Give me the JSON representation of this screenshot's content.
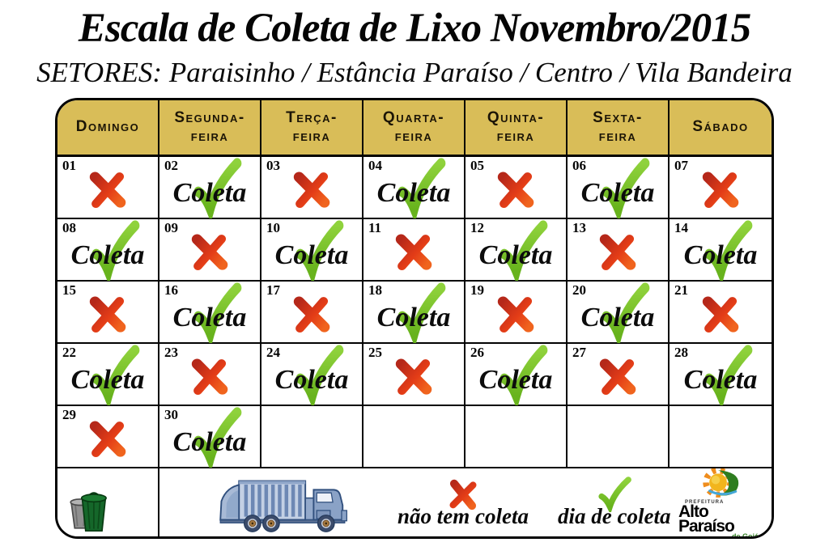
{
  "header": {
    "title": "Escala de Coleta de Lixo Novembro/2015",
    "subtitle": "SETORES: Paraisinho / Estância Paraíso / Centro / Vila Bandeira"
  },
  "colors": {
    "header_gold": "#d9bd58",
    "table_border": "#030303",
    "x_red_dark": "#b5281a",
    "x_red_light": "#f0641e",
    "check_green_light": "#8fd23c",
    "check_green_dark": "#68b31d",
    "logo_orange": "#ef8d1d",
    "logo_green": "#2e7d1f"
  },
  "calendar": {
    "weekdays": [
      {
        "line1": "Domingo",
        "line2": ""
      },
      {
        "line1": "Segunda-",
        "line2": "feira"
      },
      {
        "line1": "Terça-",
        "line2": "feira"
      },
      {
        "line1": "Quarta-",
        "line2": "feira"
      },
      {
        "line1": "Quinta-",
        "line2": "feira"
      },
      {
        "line1": "Sexta-",
        "line2": "feira"
      },
      {
        "line1": "Sábado",
        "line2": ""
      }
    ],
    "coleta_label": "Coleta",
    "cells": [
      {
        "day": "01",
        "status": "no"
      },
      {
        "day": "02",
        "status": "yes"
      },
      {
        "day": "03",
        "status": "no"
      },
      {
        "day": "04",
        "status": "yes"
      },
      {
        "day": "05",
        "status": "no"
      },
      {
        "day": "06",
        "status": "yes"
      },
      {
        "day": "07",
        "status": "no"
      },
      {
        "day": "08",
        "status": "yes"
      },
      {
        "day": "09",
        "status": "no"
      },
      {
        "day": "10",
        "status": "yes"
      },
      {
        "day": "11",
        "status": "no"
      },
      {
        "day": "12",
        "status": "yes"
      },
      {
        "day": "13",
        "status": "no"
      },
      {
        "day": "14",
        "status": "yes"
      },
      {
        "day": "15",
        "status": "no"
      },
      {
        "day": "16",
        "status": "yes"
      },
      {
        "day": "17",
        "status": "no"
      },
      {
        "day": "18",
        "status": "yes"
      },
      {
        "day": "19",
        "status": "no"
      },
      {
        "day": "20",
        "status": "yes"
      },
      {
        "day": "21",
        "status": "no"
      },
      {
        "day": "22",
        "status": "yes"
      },
      {
        "day": "23",
        "status": "no"
      },
      {
        "day": "24",
        "status": "yes"
      },
      {
        "day": "25",
        "status": "no"
      },
      {
        "day": "26",
        "status": "yes"
      },
      {
        "day": "27",
        "status": "no"
      },
      {
        "day": "28",
        "status": "yes"
      },
      {
        "day": "29",
        "status": "no"
      },
      {
        "day": "30",
        "status": "yes"
      },
      {
        "day": "",
        "status": "empty"
      },
      {
        "day": "",
        "status": "empty"
      },
      {
        "day": "",
        "status": "empty"
      },
      {
        "day": "",
        "status": "empty"
      },
      {
        "day": "",
        "status": "empty"
      }
    ]
  },
  "footer": {
    "icons": [
      "trash-cans-icon",
      "garbage-truck-icon",
      "x-mark-icon",
      "check-icon",
      "alto-paraiso-logo"
    ],
    "legend": [
      {
        "icon": "x-mark-icon",
        "label": "não tem coleta"
      },
      {
        "icon": "check-icon",
        "label": "dia de coleta"
      }
    ],
    "logo": {
      "top_text": "PREFEITURA",
      "name": "Alto Paraíso",
      "sub_text": "de Goiás"
    }
  }
}
